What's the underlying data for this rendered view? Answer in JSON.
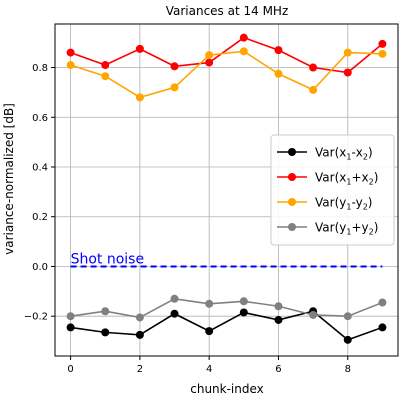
{
  "chart_data": {
    "type": "line",
    "title": "Variances at 14 MHz",
    "xlabel": "chunk-index",
    "ylabel": "variance-normalized [dB]",
    "xlim": [
      -0.45,
      9.45
    ],
    "ylim": [
      -0.36,
      0.975
    ],
    "x": [
      0,
      1,
      2,
      3,
      4,
      5,
      6,
      7,
      8,
      9
    ],
    "xticks": [
      0,
      2,
      4,
      6,
      8
    ],
    "yticks": [
      -0.2,
      0.0,
      0.2,
      0.4,
      0.6,
      0.8
    ],
    "grid": true,
    "legend_position": "center-right",
    "series": [
      {
        "legend": [
          "Var(x",
          "1",
          "-x",
          "2",
          ")"
        ],
        "color": "#000000",
        "values": [
          -0.245,
          -0.265,
          -0.275,
          -0.19,
          -0.26,
          -0.185,
          -0.215,
          -0.18,
          -0.295,
          -0.245
        ]
      },
      {
        "legend": [
          "Var(x",
          "1",
          "+x",
          "2",
          ")"
        ],
        "color": "#ff0000",
        "values": [
          0.86,
          0.81,
          0.875,
          0.805,
          0.82,
          0.92,
          0.87,
          0.8,
          0.78,
          0.895
        ]
      },
      {
        "legend": [
          "Var(y",
          "1",
          "-y",
          "2",
          ")"
        ],
        "color": "#ffa500",
        "values": [
          0.81,
          0.765,
          0.68,
          0.72,
          0.85,
          0.865,
          0.775,
          0.71,
          0.86,
          0.855
        ]
      },
      {
        "legend": [
          "Var(y",
          "1",
          "+y",
          "2",
          ")"
        ],
        "color": "#808080",
        "values": [
          -0.2,
          -0.18,
          -0.205,
          -0.13,
          -0.15,
          -0.14,
          -0.16,
          -0.195,
          -0.2,
          -0.145
        ]
      }
    ],
    "reference_line": {
      "y": 0.0,
      "x_range": [
        0,
        9
      ],
      "color": "#0000ff",
      "style": "dashed",
      "label": "Shot noise"
    }
  }
}
